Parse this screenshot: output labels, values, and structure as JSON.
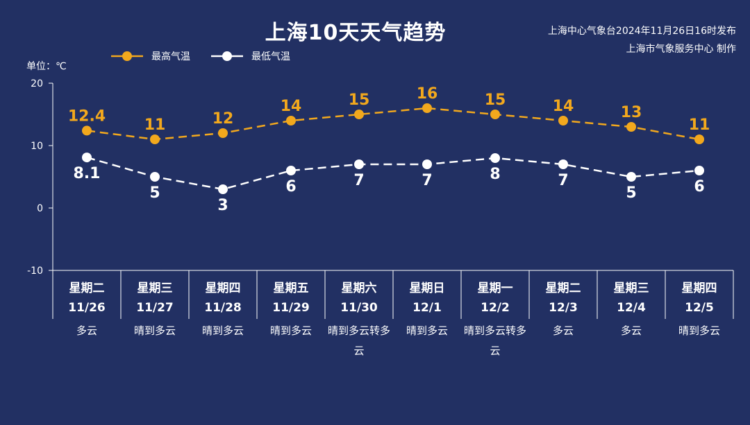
{
  "header": {
    "title": "上海10天天气趋势",
    "source_line1": "上海中心气象台2024年11月26日16时发布",
    "source_line2": "上海市气象服务中心 制作",
    "unit_label": "单位：℃"
  },
  "colors": {
    "background": "#223063",
    "high_series": "#F2A81D",
    "low_series": "#FFFFFF",
    "axis": "#FFFFFF"
  },
  "chart_data": {
    "type": "line",
    "ylim": [
      -10,
      20
    ],
    "yticks": [
      "20",
      "10",
      "0",
      "-10"
    ],
    "ytick_values": [
      20,
      10,
      0,
      -10
    ],
    "legend": [
      "最高气温",
      "最低气温"
    ],
    "legend_position": "top-left",
    "grid": false,
    "categories": [
      {
        "weekday": "星期二",
        "date": "11/26",
        "weather": "多云"
      },
      {
        "weekday": "星期三",
        "date": "11/27",
        "weather": "晴到多云"
      },
      {
        "weekday": "星期四",
        "date": "11/28",
        "weather": "晴到多云"
      },
      {
        "weekday": "星期五",
        "date": "11/29",
        "weather": "晴到多云"
      },
      {
        "weekday": "星期六",
        "date": "11/30",
        "weather": "晴到多云转多云"
      },
      {
        "weekday": "星期日",
        "date": "12/1",
        "weather": "晴到多云"
      },
      {
        "weekday": "星期一",
        "date": "12/2",
        "weather": "晴到多云转多云"
      },
      {
        "weekday": "星期二",
        "date": "12/3",
        "weather": "多云"
      },
      {
        "weekday": "星期三",
        "date": "12/4",
        "weather": "多云"
      },
      {
        "weekday": "星期四",
        "date": "12/5",
        "weather": "晴到多云"
      }
    ],
    "series": [
      {
        "name": "最高气温",
        "values": [
          12.4,
          11,
          12,
          14,
          15,
          16,
          15,
          14,
          13,
          11
        ],
        "labels": [
          "12.4",
          "11",
          "12",
          "14",
          "15",
          "16",
          "15",
          "14",
          "13",
          "11"
        ]
      },
      {
        "name": "最低气温",
        "values": [
          8.1,
          5,
          3,
          6,
          7,
          7,
          8,
          7,
          5,
          6
        ],
        "labels": [
          "8.1",
          "5",
          "3",
          "6",
          "7",
          "7",
          "8",
          "7",
          "5",
          "6"
        ]
      }
    ]
  }
}
